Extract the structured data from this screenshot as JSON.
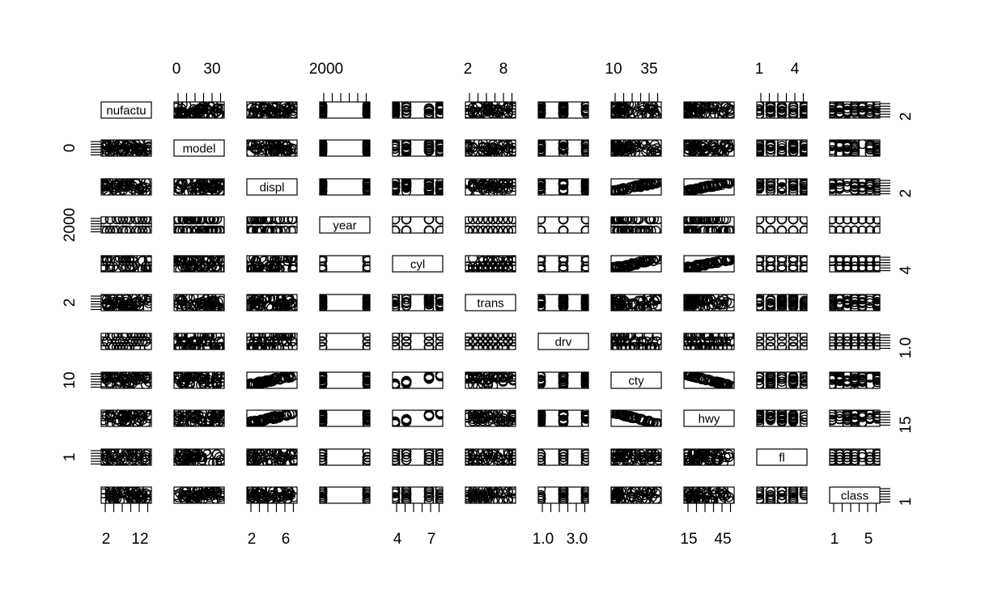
{
  "chart_data": {
    "type": "scatter",
    "subtype": "pairs-matrix",
    "title": "",
    "variables": [
      "manufacturer",
      "model",
      "displ",
      "year",
      "cyl",
      "trans",
      "drv",
      "cty",
      "hwy",
      "fl",
      "class"
    ],
    "diagonal_labels": [
      "nufactu",
      "model",
      "displ",
      "year",
      "cyl",
      "trans",
      "drv",
      "cty",
      "hwy",
      "fl",
      "class"
    ],
    "ranges": {
      "manufacturer": [
        1,
        15
      ],
      "model": [
        1,
        38
      ],
      "displ": [
        1.6,
        7.0
      ],
      "year": [
        1999,
        2008
      ],
      "cyl": [
        4,
        8
      ],
      "trans": [
        1,
        10
      ],
      "drv": [
        1,
        3
      ],
      "cty": [
        9,
        35
      ],
      "hwy": [
        12,
        44
      ],
      "fl": [
        1,
        5
      ],
      "class": [
        1,
        7
      ]
    },
    "axis_labels": {
      "top": [
        {
          "var": "model",
          "ticks": [
            "0",
            "30"
          ]
        },
        {
          "var": "year",
          "ticks": [
            "2000"
          ]
        },
        {
          "var": "trans",
          "ticks": [
            "2",
            "8"
          ]
        },
        {
          "var": "cty",
          "ticks": [
            "10",
            "35"
          ]
        },
        {
          "var": "fl",
          "ticks": [
            "1",
            "4"
          ]
        }
      ],
      "bottom": [
        {
          "var": "manufacturer",
          "ticks": [
            "2",
            "12"
          ]
        },
        {
          "var": "displ",
          "ticks": [
            "2",
            "6"
          ]
        },
        {
          "var": "cyl",
          "ticks": [
            "4",
            "7"
          ]
        },
        {
          "var": "drv",
          "ticks": [
            "1.0",
            "3.0"
          ]
        },
        {
          "var": "hwy",
          "ticks": [
            "15",
            "45"
          ]
        },
        {
          "var": "class",
          "ticks": [
            "1",
            "5"
          ]
        }
      ],
      "left": [
        {
          "var": "model",
          "ticks": [
            "0"
          ]
        },
        {
          "var": "year",
          "ticks": [
            "2000"
          ]
        },
        {
          "var": "trans",
          "ticks": [
            "2"
          ]
        },
        {
          "var": "cty",
          "ticks": [
            "10"
          ]
        },
        {
          "var": "fl",
          "ticks": [
            "1"
          ]
        }
      ],
      "right": [
        {
          "var": "manufacturer",
          "ticks": [
            "2"
          ]
        },
        {
          "var": "displ",
          "ticks": [
            "2"
          ]
        },
        {
          "var": "cyl",
          "ticks": [
            "4"
          ]
        },
        {
          "var": "drv",
          "ticks": [
            "1.0"
          ]
        },
        {
          "var": "hwy",
          "ticks": [
            "15"
          ]
        },
        {
          "var": "class",
          "ticks": [
            "1"
          ]
        }
      ]
    },
    "grid": false,
    "legend": "none"
  }
}
